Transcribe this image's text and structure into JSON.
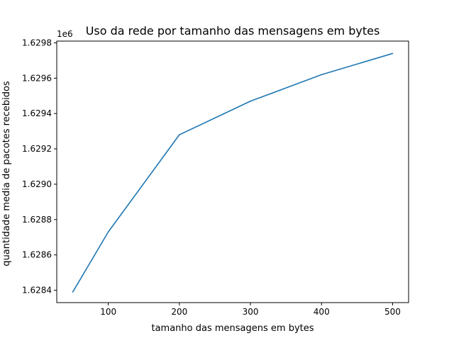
{
  "chart_data": {
    "type": "line",
    "title": "Uso da rede por tamanho das mensagens em bytes",
    "xlabel": "tamanho das mensagens em bytes",
    "ylabel": "quantidade media de pacotes recebidos",
    "y_offset_label": "1e6",
    "xlim": [
      27.5,
      522.5
    ],
    "ylim": [
      1.62833,
      1.62981
    ],
    "x_ticks": [
      100,
      200,
      300,
      400,
      500
    ],
    "x_tick_labels": [
      "100",
      "200",
      "300",
      "400",
      "500"
    ],
    "y_ticks": [
      1.6284,
      1.6286,
      1.6288,
      1.629,
      1.6292,
      1.6294,
      1.6296,
      1.6298
    ],
    "y_tick_labels": [
      "1.6284",
      "1.6286",
      "1.6288",
      "1.6290",
      "1.6292",
      "1.6294",
      "1.6296",
      "1.6298"
    ],
    "grid": false,
    "series": [
      {
        "color": "#1f77b4",
        "x": [
          50,
          100,
          200,
          300,
          400,
          500
        ],
        "y": [
          1.62839,
          1.62873,
          1.62928,
          1.62947,
          1.62962,
          1.62974
        ]
      }
    ]
  }
}
